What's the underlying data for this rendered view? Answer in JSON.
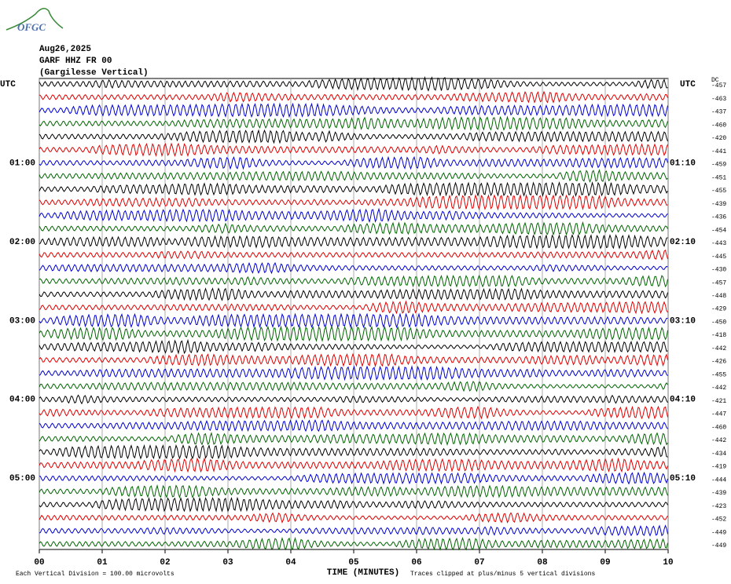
{
  "chart_data": {
    "type": "helicorder",
    "logo": "OFGC",
    "date": "Aug26,2025",
    "station": "GARF HHZ FR 00",
    "location": "(Gargilesse Vertical)",
    "left_axis_title": "UTC",
    "right_axis_title": "UTC",
    "dc_title": "DC",
    "xlabel": "TIME (MINUTES)",
    "scale_note": "Each Vertical Division =  100.00 microvolts",
    "clip_note": "Traces clipped at plus/minus 5 vertical divisions",
    "xlim": [
      0,
      10
    ],
    "xticks": [
      {
        "value": 0,
        "label": "00"
      },
      {
        "value": 1,
        "label": "01"
      },
      {
        "value": 2,
        "label": "02"
      },
      {
        "value": 3,
        "label": "03"
      },
      {
        "value": 4,
        "label": "04"
      },
      {
        "value": 5,
        "label": "05"
      },
      {
        "value": 6,
        "label": "06"
      },
      {
        "value": 7,
        "label": "07"
      },
      {
        "value": 8,
        "label": "08"
      },
      {
        "value": 9,
        "label": "09"
      },
      10
    ],
    "grid": true,
    "trace_colors": [
      "#000000",
      "#e00000",
      "#0000d0",
      "#006400"
    ],
    "left_time_labels": [
      null,
      null,
      null,
      null,
      null,
      null,
      "01:00",
      null,
      null,
      null,
      null,
      null,
      "02:00",
      null,
      null,
      null,
      null,
      null,
      "03:00",
      null,
      null,
      null,
      null,
      null,
      "04:00",
      null,
      null,
      null,
      null,
      null,
      "05:00",
      null,
      null,
      null,
      null,
      null
    ],
    "right_time_labels": [
      null,
      null,
      null,
      null,
      null,
      null,
      "01:10",
      null,
      null,
      null,
      null,
      null,
      "02:10",
      null,
      null,
      null,
      null,
      null,
      "03:10",
      null,
      null,
      null,
      null,
      null,
      "04:10",
      null,
      null,
      null,
      null,
      null,
      "05:10",
      null,
      null,
      null,
      null,
      null
    ],
    "dc_offsets": [
      -457,
      -463,
      -437,
      -460,
      -420,
      -441,
      -459,
      -451,
      -455,
      -439,
      -436,
      -454,
      -443,
      -445,
      -430,
      -457,
      -448,
      -429,
      -450,
      -418,
      -442,
      -426,
      -455,
      -442,
      -421,
      -447,
      -460,
      -442,
      -434,
      -419,
      -444,
      -439,
      -423,
      -452,
      -449,
      -449
    ]
  }
}
